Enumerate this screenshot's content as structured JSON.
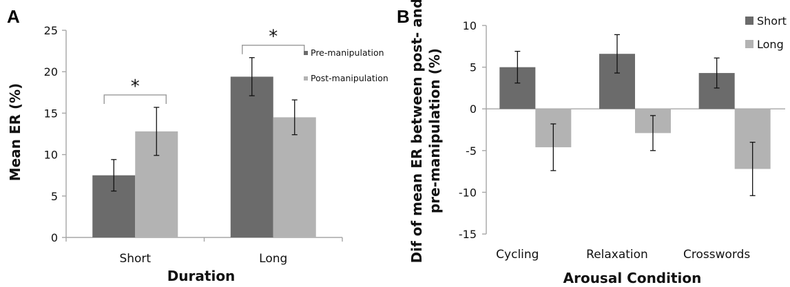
{
  "chart_data": [
    {
      "panel": "A",
      "type": "bar",
      "categories": [
        "Short",
        "Long"
      ],
      "series": [
        {
          "name": "Pre-manipulation",
          "color": "#6b6b6b",
          "values": [
            7.5,
            19.4
          ],
          "errors": [
            1.9,
            2.3
          ]
        },
        {
          "name": "Post-manipulation",
          "color": "#b3b3b3",
          "values": [
            12.8,
            14.5
          ],
          "errors": [
            2.9,
            2.1
          ]
        }
      ],
      "xlabel": "Duration",
      "ylabel": "Mean ER (%)",
      "ylim": [
        0,
        25
      ],
      "yticks": [
        0,
        5,
        10,
        15,
        20,
        25
      ],
      "legend": "right",
      "grid": false,
      "annotations": [
        {
          "text": "*",
          "category": "Short"
        },
        {
          "text": "*",
          "category": "Long"
        }
      ]
    },
    {
      "panel": "B",
      "type": "bar",
      "categories": [
        "Cycling",
        "Relaxation",
        "Crosswords"
      ],
      "series": [
        {
          "name": "Short",
          "color": "#6b6b6b",
          "values": [
            5.0,
            6.6,
            4.3
          ],
          "errors": [
            1.9,
            2.3,
            1.8
          ]
        },
        {
          "name": "Long",
          "color": "#b3b3b3",
          "values": [
            -4.6,
            -2.9,
            -7.2
          ],
          "errors": [
            2.8,
            2.1,
            3.2
          ]
        }
      ],
      "xlabel": "Arousal Condition",
      "ylabel_lines": [
        "Dif of mean ER between post- and",
        "pre-manipulation (%)"
      ],
      "ylim": [
        -15,
        10
      ],
      "yticks": [
        -15,
        -10,
        -5,
        0,
        5,
        10
      ],
      "legend": "top-right",
      "grid": false
    }
  ]
}
